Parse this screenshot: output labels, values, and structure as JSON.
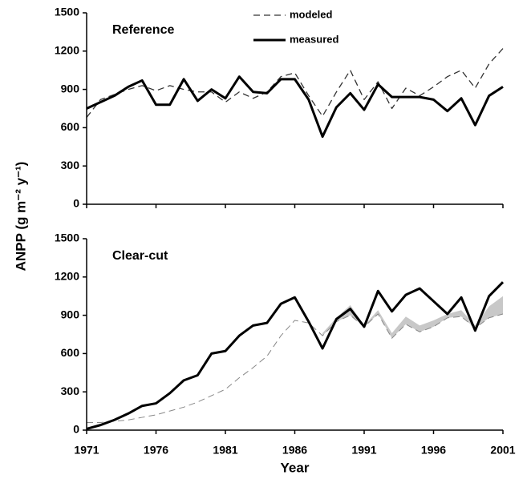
{
  "chart_data": [
    {
      "type": "line",
      "title": "Reference",
      "ylabel": "ANPP (g m⁻² y⁻¹)",
      "x": [
        1971,
        1972,
        1973,
        1974,
        1975,
        1976,
        1977,
        1978,
        1979,
        1980,
        1981,
        1982,
        1983,
        1984,
        1985,
        1986,
        1987,
        1988,
        1989,
        1990,
        1991,
        1992,
        1993,
        1994,
        1995,
        1996,
        1997,
        1998,
        1999,
        2000,
        2001
      ],
      "series": [
        {
          "name": "modeled",
          "color": "#333333",
          "dashed": true,
          "values": [
            680,
            820,
            860,
            900,
            930,
            890,
            930,
            900,
            880,
            880,
            800,
            880,
            830,
            880,
            1000,
            1030,
            850,
            690,
            880,
            1050,
            820,
            960,
            750,
            910,
            850,
            920,
            1000,
            1050,
            910,
            1100,
            1220
          ]
        },
        {
          "name": "measured",
          "color": "#000000",
          "dashed": false,
          "values": [
            750,
            800,
            850,
            920,
            970,
            780,
            780,
            980,
            810,
            900,
            830,
            1000,
            880,
            870,
            980,
            980,
            820,
            530,
            760,
            870,
            740,
            940,
            840,
            840,
            840,
            820,
            730,
            830,
            620,
            850,
            920
          ]
        }
      ],
      "xlim": [
        1971,
        2001
      ],
      "xticks": [
        1971,
        1976,
        1981,
        1986,
        1991,
        1996,
        2001
      ],
      "ylim": [
        0,
        1500
      ],
      "yticks": [
        0,
        300,
        600,
        900,
        1200,
        1500
      ],
      "legend": true,
      "show_xtick_labels": false
    },
    {
      "type": "line",
      "title": "Clear-cut",
      "xlabel": "Year",
      "x": [
        1971,
        1972,
        1973,
        1974,
        1975,
        1976,
        1977,
        1978,
        1979,
        1980,
        1981,
        1982,
        1983,
        1984,
        1985,
        1986,
        1987,
        1988,
        1989,
        1990,
        1991,
        1992,
        1993,
        1994,
        1995,
        1996,
        1997,
        1998,
        1999,
        2000,
        2001
      ],
      "series": [
        {
          "name": "modeled",
          "color": "#888888",
          "dashed": true,
          "values": [
            60,
            60,
            70,
            80,
            100,
            120,
            150,
            180,
            220,
            270,
            320,
            410,
            490,
            580,
            740,
            860,
            840,
            740,
            850,
            900,
            810,
            910,
            720,
            830,
            770,
            810,
            880,
            890,
            800,
            880,
            910
          ]
        },
        {
          "name": "measured",
          "color": "#000000",
          "dashed": false,
          "values": [
            10,
            40,
            80,
            130,
            190,
            210,
            290,
            390,
            430,
            600,
            620,
            740,
            820,
            840,
            990,
            1040,
            850,
            640,
            870,
            950,
            810,
            1090,
            930,
            1060,
            1110,
            1010,
            910,
            1040,
            780,
            1050,
            1160
          ]
        }
      ],
      "band": {
        "color": "#c8c8c8",
        "x": [
          1988,
          1989,
          1990,
          1991,
          1992,
          1993,
          1994,
          1995,
          1996,
          1997,
          1998,
          1999,
          2000,
          2001
        ],
        "lower": [
          740,
          850,
          900,
          810,
          910,
          720,
          830,
          770,
          810,
          880,
          890,
          800,
          880,
          910
        ],
        "upper": [
          760,
          880,
          980,
          820,
          940,
          760,
          890,
          820,
          860,
          910,
          940,
          820,
          970,
          1050
        ]
      },
      "xlim": [
        1971,
        2001
      ],
      "xticks": [
        1971,
        1976,
        1981,
        1986,
        1991,
        1996,
        2001
      ],
      "ylim": [
        0,
        1500
      ],
      "yticks": [
        0,
        300,
        600,
        900,
        1200,
        1500
      ],
      "legend": false,
      "show_xtick_labels": true
    }
  ]
}
